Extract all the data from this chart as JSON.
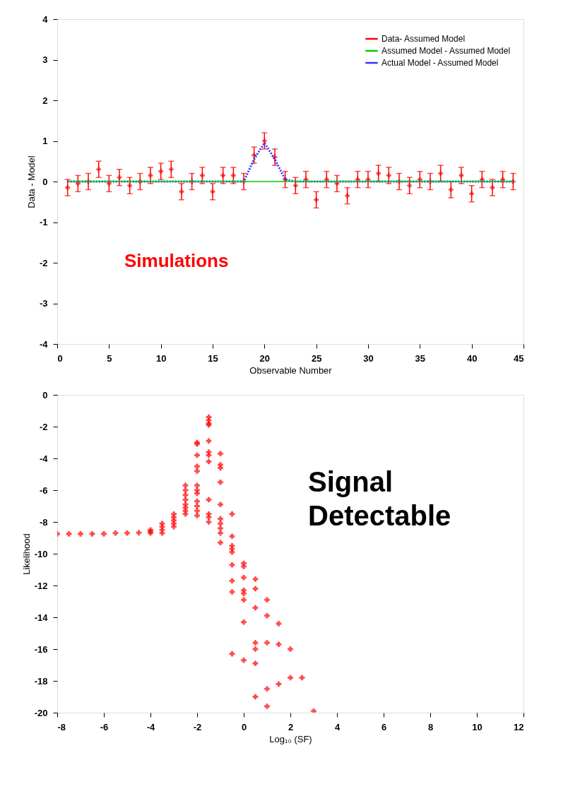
{
  "chart_data": [
    {
      "type": "line",
      "xlabel": "Observable Number",
      "ylabel": "Data - Model",
      "xlim": [
        0,
        45
      ],
      "ylim": [
        -4,
        4
      ],
      "xticks": [
        0,
        5,
        10,
        15,
        20,
        25,
        30,
        35,
        40,
        45
      ],
      "yticks": [
        -4,
        -3,
        -2,
        -1,
        0,
        1,
        2,
        3,
        4
      ],
      "grid": false,
      "legend": "top right",
      "annotations": [
        "Simulations"
      ],
      "x": [
        1,
        2,
        3,
        4,
        5,
        6,
        7,
        8,
        9,
        10,
        11,
        12,
        13,
        14,
        15,
        16,
        17,
        18,
        19,
        20,
        21,
        22,
        23,
        24,
        25,
        26,
        27,
        28,
        29,
        30,
        31,
        32,
        33,
        34,
        35,
        36,
        37,
        38,
        39,
        40,
        41,
        42,
        43,
        44
      ],
      "series": [
        {
          "name": "Data- Assumed Model",
          "type": "scatter",
          "marker": "cross",
          "color": "#ff0000",
          "values": [
            -0.15,
            -0.05,
            0.0,
            0.3,
            -0.05,
            0.1,
            -0.1,
            0.0,
            0.15,
            0.25,
            0.3,
            -0.25,
            0.0,
            0.15,
            -0.25,
            0.15,
            0.15,
            0.0,
            0.65,
            1.0,
            0.6,
            0.05,
            -0.1,
            0.05,
            -0.45,
            0.05,
            -0.05,
            -0.35,
            0.05,
            0.05,
            0.2,
            0.15,
            0.0,
            -0.1,
            0.05,
            0.0,
            0.2,
            -0.2,
            0.15,
            -0.3,
            0.05,
            -0.15,
            0.05,
            0.0
          ],
          "errors": [
            0.2,
            0.2,
            0.2,
            0.2,
            0.2,
            0.2,
            0.2,
            0.2,
            0.2,
            0.2,
            0.2,
            0.2,
            0.2,
            0.2,
            0.2,
            0.2,
            0.2,
            0.2,
            0.2,
            0.2,
            0.2,
            0.2,
            0.2,
            0.2,
            0.2,
            0.2,
            0.2,
            0.2,
            0.2,
            0.2,
            0.2,
            0.2,
            0.2,
            0.2,
            0.2,
            0.2,
            0.2,
            0.2,
            0.2,
            0.2,
            0.2,
            0.2,
            0.2,
            0.2
          ]
        },
        {
          "name": "Assumed Model - Assumed Model",
          "type": "line",
          "line_style": "solid",
          "color": "#00cc00",
          "x": [
            1,
            44
          ],
          "values": [
            0,
            0
          ]
        },
        {
          "name": "Actual Model - Assumed Model",
          "type": "line",
          "line_style": "dotted",
          "color": "#3333ff",
          "x": [
            1,
            18,
            19,
            20,
            21,
            22,
            23,
            44
          ],
          "values": [
            0,
            0,
            0.55,
            0.95,
            0.55,
            0.05,
            0,
            0
          ]
        }
      ]
    },
    {
      "type": "scatter",
      "xlabel": "Log₁₀ (SF)",
      "ylabel": "Likelihood",
      "xlim": [
        -8,
        12
      ],
      "ylim": [
        -20,
        0
      ],
      "xticks": [
        -8,
        -6,
        -4,
        -2,
        0,
        2,
        4,
        6,
        8,
        10,
        12
      ],
      "yticks": [
        -20,
        -18,
        -16,
        -14,
        -12,
        -10,
        -8,
        -6,
        -4,
        -2,
        0
      ],
      "grid": false,
      "marker": "cross",
      "annotations": [
        "Signal Detectable"
      ],
      "x": [
        -8,
        -7.5,
        -7,
        -6.5,
        -6,
        -5.5,
        -5,
        -4.5,
        -4,
        -4,
        -4,
        -3.5,
        -3.5,
        -3.5,
        -3.5,
        -3,
        -3,
        -3,
        -3,
        -3,
        -2.5,
        -2.5,
        -2.5,
        -2.5,
        -2.5,
        -2.5,
        -2.5,
        -2.5,
        -2,
        -2,
        -2,
        -2,
        -2,
        -2,
        -2,
        -2,
        -2,
        -2,
        -2,
        -2,
        -1.5,
        -1.5,
        -1.5,
        -1.5,
        -1.5,
        -1.5,
        -1.5,
        -1.5,
        -1.5,
        -1.5,
        -1.5,
        -1.5,
        -1,
        -1,
        -1,
        -1,
        -1,
        -1,
        -1,
        -1,
        -1,
        -1,
        -0.5,
        -0.5,
        -0.5,
        -0.5,
        -0.5,
        -0.5,
        -0.5,
        -0.5,
        -0.5,
        0,
        0,
        0,
        0,
        0,
        0,
        0,
        0,
        0.5,
        0.5,
        0.5,
        0.5,
        0.5,
        0.5,
        0.5,
        1,
        1,
        1,
        1,
        1,
        1.5,
        1.5,
        1.5,
        2,
        2,
        2.5,
        3
      ],
      "series": [
        {
          "color": "#ff0000",
          "values": [
            -8.75,
            -8.75,
            -8.75,
            -8.75,
            -8.75,
            -8.7,
            -8.7,
            -8.68,
            -8.5,
            -8.6,
            -8.7,
            -8.1,
            -8.3,
            -8.5,
            -8.7,
            -7.5,
            -7.7,
            -7.9,
            -8.1,
            -8.3,
            -5.7,
            -6.0,
            -6.3,
            -6.6,
            -6.9,
            -7.1,
            -7.3,
            -7.5,
            -3.0,
            -3.1,
            -3.8,
            -4.5,
            -4.8,
            -5.7,
            -6.0,
            -6.2,
            -6.7,
            -7.0,
            -7.3,
            -7.6,
            -1.4,
            -1.6,
            -1.8,
            -1.9,
            -2.9,
            -3.6,
            -3.8,
            -4.2,
            -6.6,
            -7.5,
            -7.7,
            -8.0,
            -3.7,
            -4.4,
            -4.6,
            -5.5,
            -6.9,
            -7.8,
            -8.1,
            -8.4,
            -8.7,
            -9.3,
            -7.5,
            -8.9,
            -9.5,
            -9.7,
            -9.9,
            -10.7,
            -11.7,
            -12.4,
            -16.3,
            -10.6,
            -10.8,
            -11.5,
            -12.3,
            -12.5,
            -12.9,
            -14.3,
            -16.7,
            -11.6,
            -12.2,
            -13.4,
            -15.6,
            -16.0,
            -16.9,
            -19.0,
            -12.9,
            -13.9,
            -15.6,
            -18.5,
            -19.6,
            -14.4,
            -15.7,
            -18.2,
            -16.0,
            -17.8,
            -17.8,
            -19.9
          ]
        }
      ]
    }
  ]
}
